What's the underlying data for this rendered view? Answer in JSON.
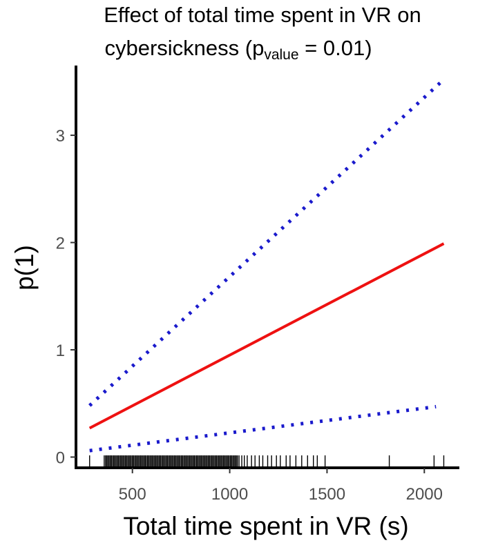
{
  "chart_data": {
    "type": "line",
    "title": "Effect of total time spent in VR on",
    "title_line2": "cybersickness (p",
    "title_subscript": "value",
    "title_line2_end": " = 0.01)",
    "xlabel": "Total time spent in VR (s)",
    "ylabel": "p(1)",
    "xlim": [
      210,
      2180
    ],
    "ylim": [
      -0.1,
      3.65
    ],
    "xticks": [
      500,
      1000,
      1500,
      2000
    ],
    "yticks": [
      0,
      1,
      2,
      3
    ],
    "grid": false,
    "series": [
      {
        "style": "solid",
        "color": "#ee1111",
        "x": [
          280,
          2100
        ],
        "y": [
          0.27,
          1.99
        ]
      },
      {
        "style": "dotted",
        "color": "#1a1acc",
        "x": [
          280,
          2100
        ],
        "y": [
          0.48,
          3.52
        ]
      },
      {
        "style": "dotted",
        "color": "#1a1acc",
        "x": [
          280,
          2060
        ],
        "y": [
          0.06,
          0.47
        ]
      }
    ],
    "rug_x": [
      280,
      355,
      362,
      368,
      374,
      380,
      386,
      392,
      398,
      404,
      410,
      416,
      422,
      428,
      434,
      440,
      446,
      452,
      458,
      464,
      470,
      476,
      482,
      488,
      494,
      500,
      506,
      512,
      518,
      524,
      530,
      536,
      542,
      548,
      554,
      560,
      566,
      572,
      578,
      584,
      590,
      596,
      602,
      608,
      614,
      620,
      626,
      632,
      638,
      644,
      650,
      656,
      662,
      668,
      674,
      680,
      686,
      692,
      698,
      704,
      710,
      716,
      722,
      728,
      734,
      740,
      746,
      752,
      758,
      764,
      770,
      776,
      782,
      788,
      794,
      800,
      806,
      812,
      818,
      824,
      830,
      836,
      842,
      848,
      854,
      860,
      866,
      872,
      878,
      884,
      890,
      896,
      902,
      908,
      914,
      920,
      926,
      932,
      938,
      944,
      950,
      956,
      962,
      968,
      974,
      980,
      986,
      992,
      998,
      1004,
      1010,
      1016,
      1022,
      1028,
      1034,
      1040,
      1048,
      1062,
      1075,
      1090,
      1112,
      1130,
      1152,
      1170,
      1195,
      1215,
      1240,
      1260,
      1290,
      1310,
      1340,
      1370,
      1400,
      1430,
      1450,
      1490,
      1820,
      2050,
      2100
    ]
  }
}
